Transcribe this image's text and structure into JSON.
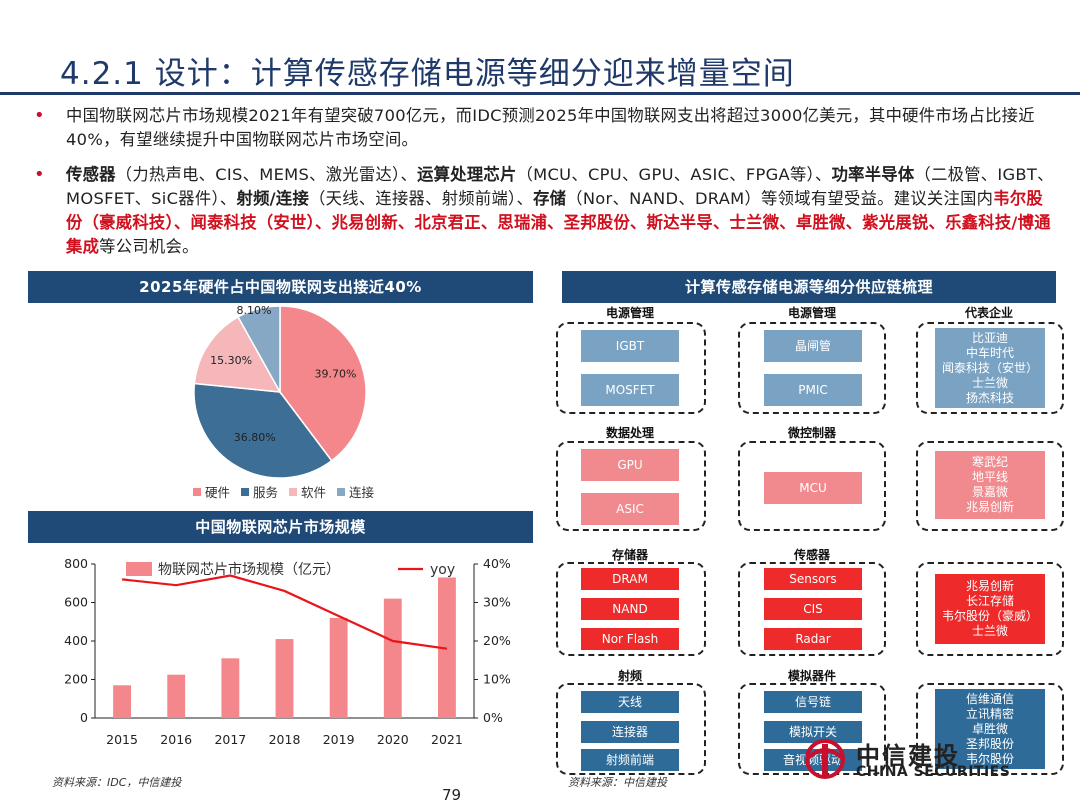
{
  "title": "4.2.1 设计：计算传感存储电源等细分迎来增量空间",
  "bullets": {
    "b1": "中国物联网芯片市场规模2021年有望突破700亿元，而IDC预测2025年中国物联网支出将超过3000亿美元，其中硬件市场占比接近40%，有望继续提升中国物联网芯片市场空间。",
    "b2": {
      "s1": "传感器",
      "s2": "（力热声电、CIS、MEMS、激光雷达）、",
      "s3": "运算处理芯片",
      "s4": "（MCU、CPU、GPU、ASIC、FPGA等）、",
      "s5": "功率半导体",
      "s6": "（二极管、IGBT、MOSFET、SiC器件）、",
      "s7": "射频/连接",
      "s8": "（天线、连接器、射频前端）、",
      "s9": "存储",
      "s10": "（Nor、NAND、DRAM）等领域有望受益。建议关注国内",
      "s11": "韦尔股份（豪威科技）、闻泰科技（安世）、兆易创新、北京君正、思瑞浦、圣邦股份、斯达半导、士兰微、卓胜微、紫光展锐、乐鑫科技/博通集成",
      "s12": "等公司机会。"
    }
  },
  "pie_header": "2025年硬件占中国物联网支出接近40%",
  "bar_header": "中国物联网芯片市场规模",
  "supply_header": "计算传感存储电源等细分供应链梳理",
  "chart_data": [
    {
      "type": "pie",
      "title": "2025年硬件占中国物联网支出接近40%",
      "labels": [
        "硬件",
        "服务",
        "软件",
        "连接"
      ],
      "values": [
        39.7,
        36.8,
        15.3,
        8.1
      ],
      "value_labels": [
        "39.70%",
        "36.80%",
        "15.30%",
        "8.10%"
      ],
      "colors": [
        "#f4878b",
        "#3d6e96",
        "#f6b7ba",
        "#86a8c4"
      ]
    },
    {
      "type": "bar+line",
      "title": "中国物联网芯片市场规模",
      "categories": [
        "2015",
        "2016",
        "2017",
        "2018",
        "2019",
        "2020",
        "2021"
      ],
      "series": [
        {
          "name": "物联网芯片市场规模（亿元）",
          "type": "bar",
          "axis": "left",
          "values": [
            170,
            225,
            310,
            410,
            520,
            620,
            730
          ],
          "color": "#f4878b"
        },
        {
          "name": "yoy",
          "type": "line",
          "axis": "right",
          "values": [
            36,
            34.5,
            37,
            33,
            26.5,
            20,
            18
          ],
          "color": "#e8151b"
        }
      ],
      "ylim": [
        0,
        800
      ],
      "yticks": [
        "0",
        "200",
        "400",
        "600",
        "800"
      ],
      "y2lim": [
        0,
        40
      ],
      "y2ticks": [
        "0%",
        "10%",
        "20%",
        "30%",
        "40%"
      ]
    }
  ],
  "source_left": "资料来源：IDC，中信建投",
  "source_right": "资料来源：中信建投",
  "page_number": "79",
  "supply": {
    "groups": {
      "power1": {
        "title": "电源管理",
        "items": [
          "IGBT",
          "MOSFET"
        ]
      },
      "power2": {
        "title": "电源管理",
        "items": [
          "晶闸管",
          "PMIC"
        ]
      },
      "power_cos": {
        "title": "代表企业",
        "items": [
          "比亚迪",
          "中车时代",
          "闻泰科技（安世）",
          "士兰微",
          "扬杰科技"
        ]
      },
      "data": {
        "title": "数据处理",
        "items": [
          "GPU",
          "ASIC"
        ]
      },
      "mcu": {
        "title": "微控制器",
        "items": [
          "MCU"
        ]
      },
      "data_cos": {
        "items": [
          "寒武纪",
          "地平线",
          "景嘉微",
          "兆易创新"
        ]
      },
      "storage": {
        "title": "存储器",
        "items": [
          "DRAM",
          "NAND",
          "Nor Flash"
        ]
      },
      "sensor": {
        "title": "传感器",
        "items": [
          "Sensors",
          "CIS",
          "Radar"
        ]
      },
      "storage_cos": {
        "items": [
          "兆易创新",
          "长江存储",
          "韦尔股份（豪威）",
          "士兰微"
        ]
      },
      "rf": {
        "title": "射频",
        "items": [
          "天线",
          "连接器",
          "射频前端"
        ]
      },
      "analog": {
        "title": "模拟器件",
        "items": [
          "信号链",
          "模拟开关",
          "音视频驱动"
        ]
      },
      "rf_cos": {
        "items": [
          "信维通信",
          "立讯精密",
          "卓胜微",
          "圣邦股份",
          "韦尔股份"
        ]
      }
    }
  },
  "logo": {
    "cn": "中信建投",
    "en": "CHINA SECURITIES"
  },
  "colors": {
    "navy": "#1f4a78",
    "accent_red": "#d0101e"
  }
}
